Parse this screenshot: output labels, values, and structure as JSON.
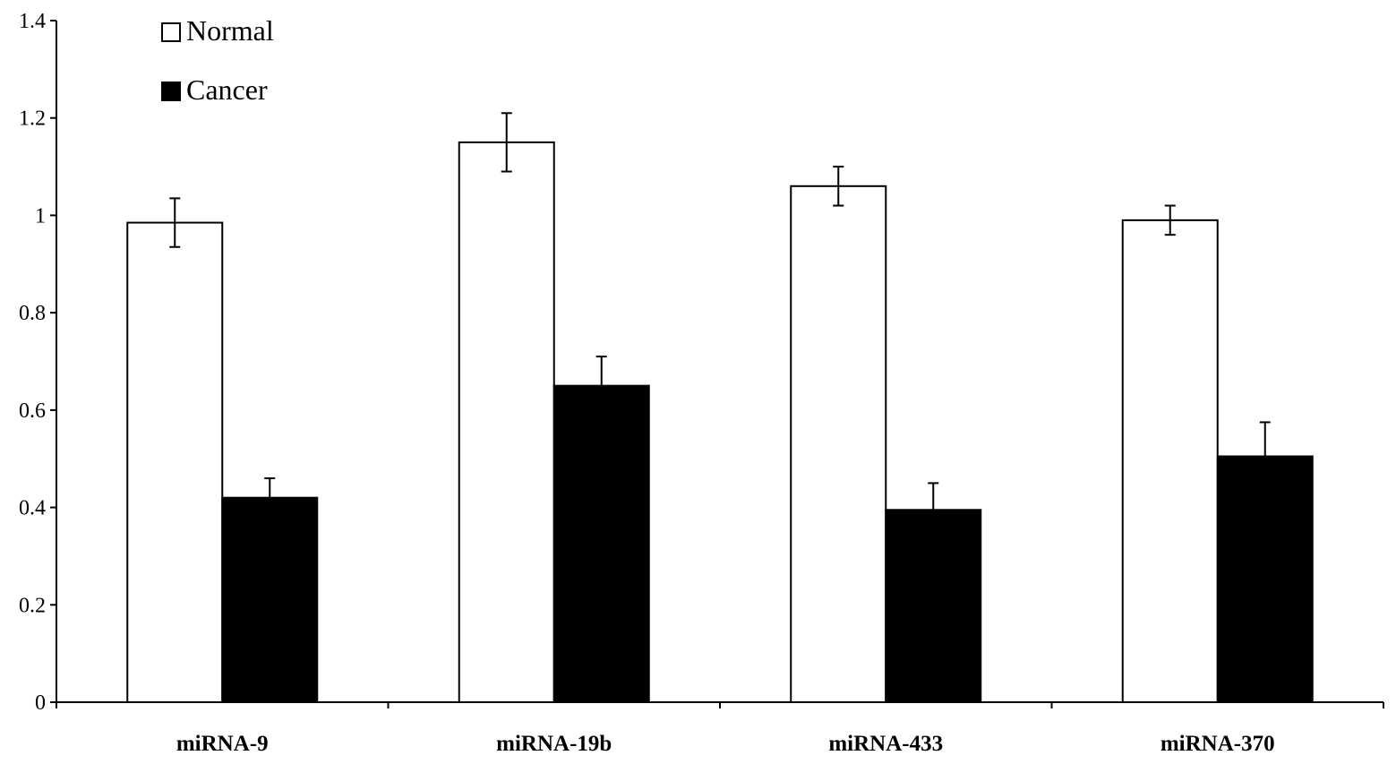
{
  "chart_data": {
    "type": "bar",
    "categories": [
      "miRNA-9",
      "miRNA-19b",
      "miRNA-433",
      "miRNA-370"
    ],
    "series": [
      {
        "name": "Normal",
        "values": [
          0.985,
          1.15,
          1.06,
          0.99
        ],
        "errors": [
          0.05,
          0.06,
          0.04,
          0.03
        ],
        "color": "#ffffff"
      },
      {
        "name": "Cancer",
        "values": [
          0.42,
          0.65,
          0.395,
          0.505
        ],
        "errors": [
          0.04,
          0.06,
          0.055,
          0.07
        ],
        "color": "#000000"
      }
    ],
    "ylim": [
      0,
      1.4
    ],
    "yticks": [
      "0",
      "0.2",
      "0.4",
      "0.6",
      "0.8",
      "1",
      "1.2",
      "1.4"
    ],
    "legend_position": "top-left",
    "grid": false,
    "title": "",
    "xlabel": "",
    "ylabel": ""
  }
}
